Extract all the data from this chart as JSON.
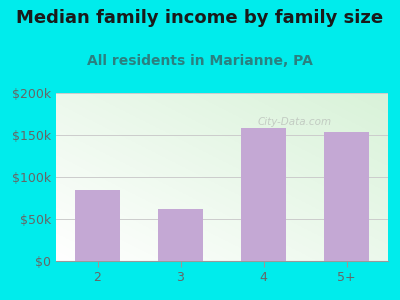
{
  "title": "Median family income by family size",
  "subtitle": "All residents in Marianne, PA",
  "categories": [
    "2",
    "3",
    "4",
    "5+"
  ],
  "values": [
    85000,
    62000,
    158000,
    153000
  ],
  "bar_color": "#c4a8d4",
  "background_outer": "#00ecec",
  "title_color": "#1a1a1a",
  "subtitle_color": "#2a8080",
  "tick_color": "#666666",
  "ylim": [
    0,
    200000
  ],
  "yticks": [
    0,
    50000,
    100000,
    150000,
    200000
  ],
  "ytick_labels": [
    "$0",
    "$50k",
    "$100k",
    "$150k",
    "$200k"
  ],
  "title_fontsize": 13,
  "subtitle_fontsize": 10,
  "tick_fontsize": 9,
  "watermark": "City-Data.com"
}
